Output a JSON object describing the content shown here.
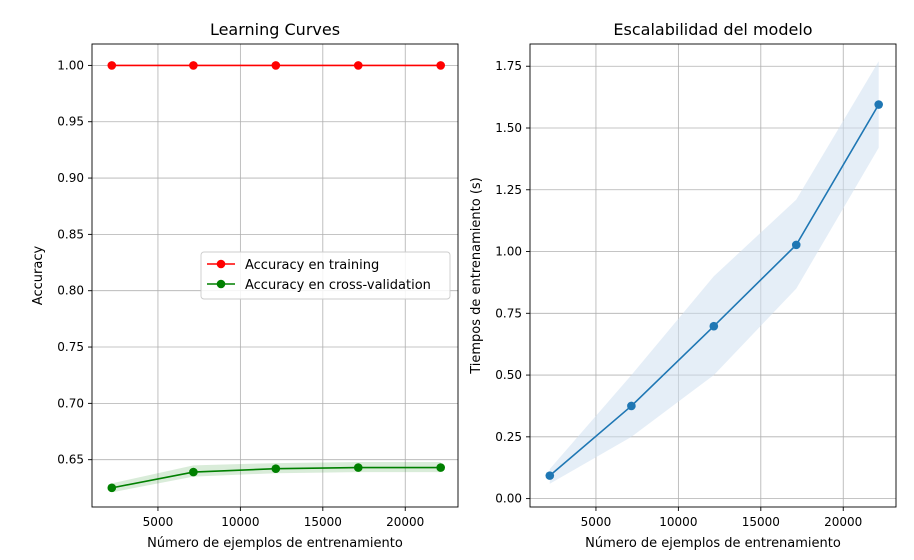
{
  "chart_data": [
    {
      "type": "line",
      "title": "Learning Curves",
      "xlabel": "Número de ejemplos de entrenamiento",
      "ylabel": "Accuracy",
      "xlim": [
        1000,
        23200
      ],
      "ylim": [
        0.608,
        1.019
      ],
      "xticks": [
        5000,
        10000,
        15000,
        20000
      ],
      "xtick_labels": [
        "5000",
        "10000",
        "15000",
        "20000"
      ],
      "yticks": [
        0.65,
        0.7,
        0.75,
        0.8,
        0.85,
        0.9,
        0.95,
        1.0
      ],
      "ytick_labels": [
        "0.65",
        "0.70",
        "0.75",
        "0.80",
        "0.85",
        "0.90",
        "0.95",
        "1.00"
      ],
      "grid": true,
      "legend_position": "center-right",
      "x": [
        2200,
        7150,
        12150,
        17150,
        22150
      ],
      "series": [
        {
          "name": "Accuracy en training",
          "color": "#ff0000",
          "values": [
            1.0,
            1.0,
            1.0,
            1.0,
            1.0
          ],
          "band_low": [
            1.0,
            1.0,
            1.0,
            1.0,
            1.0
          ],
          "band_high": [
            1.0,
            1.0,
            1.0,
            1.0,
            1.0
          ]
        },
        {
          "name": "Accuracy en cross-validation",
          "color": "#008000",
          "values": [
            0.625,
            0.639,
            0.642,
            0.643,
            0.643
          ],
          "band_low": [
            0.621,
            0.635,
            0.638,
            0.639,
            0.639
          ],
          "band_high": [
            0.629,
            0.645,
            0.647,
            0.648,
            0.648
          ]
        }
      ]
    },
    {
      "type": "line",
      "title": "Escalabilidad del modelo",
      "xlabel": "Número de ejemplos de entrenamiento",
      "ylabel": "Tiempos de entrenamiento (s)",
      "xlim": [
        1000,
        23200
      ],
      "ylim": [
        -0.034,
        1.84
      ],
      "xticks": [
        5000,
        10000,
        15000,
        20000
      ],
      "xtick_labels": [
        "5000",
        "10000",
        "15000",
        "20000"
      ],
      "yticks": [
        0.0,
        0.25,
        0.5,
        0.75,
        1.0,
        1.25,
        1.5,
        1.75
      ],
      "ytick_labels": [
        "0.00",
        "0.25",
        "0.50",
        "0.75",
        "1.00",
        "1.25",
        "1.50",
        "1.75"
      ],
      "grid": true,
      "x": [
        2200,
        7150,
        12150,
        17150,
        22150
      ],
      "series": [
        {
          "color": "#1f77b4",
          "fill_color": "#cfe0f1",
          "values": [
            0.093,
            0.375,
            0.698,
            1.027,
            1.595
          ],
          "band_low": [
            0.06,
            0.25,
            0.5,
            0.85,
            1.42
          ],
          "band_high": [
            0.12,
            0.5,
            0.9,
            1.21,
            1.77
          ]
        }
      ]
    }
  ]
}
